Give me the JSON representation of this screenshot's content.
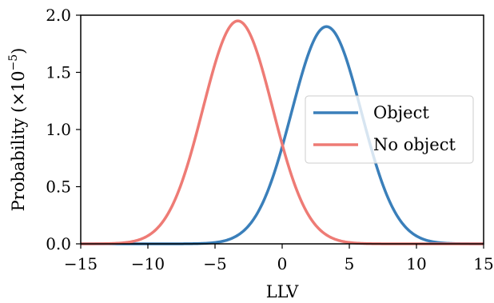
{
  "chart_data": {
    "type": "line",
    "xlabel": "LLV",
    "ylabel_main": "Probability (×10",
    "ylabel_exp": "−5",
    "ylabel_close": ")",
    "xlim": [
      -15,
      15
    ],
    "ylim": [
      0,
      2.0
    ],
    "xticks": [
      -15,
      -10,
      -5,
      0,
      5,
      10,
      15
    ],
    "xtick_labels": [
      "−15",
      "−10",
      "−5",
      "0",
      "5",
      "10",
      "15"
    ],
    "yticks": [
      0,
      0.5,
      1.0,
      1.5,
      2.0
    ],
    "ytick_labels": [
      "0.0",
      "0.5",
      "1.0",
      "1.5",
      "2.0"
    ],
    "grid": false,
    "legend_position": "center-right",
    "series": [
      {
        "name": "Object",
        "color": "#3a7fba",
        "distribution": "gaussian",
        "mean": 3.3,
        "std": 2.6,
        "peak": 1.9
      },
      {
        "name": "No object",
        "color": "#ee7b75",
        "distribution": "gaussian",
        "mean": -3.3,
        "std": 2.6,
        "peak": 1.95
      }
    ]
  }
}
